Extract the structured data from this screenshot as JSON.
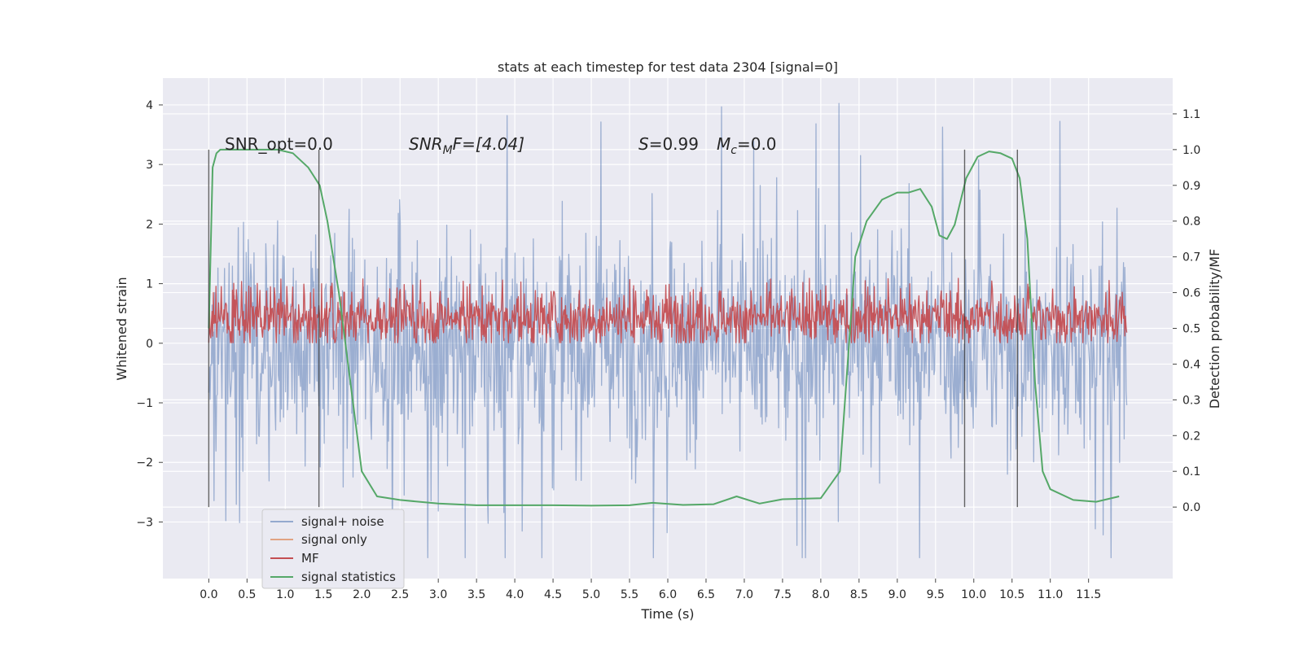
{
  "chart_data": {
    "type": "line",
    "title": "stats at each timestep for test data 2304 [signal=0]",
    "xlabel": "Time (s)",
    "ylabel": "Whitened strain",
    "ylabel_right": "Detection probability/MF",
    "xlim": [
      -0.6,
      12.6
    ],
    "ylim": [
      -3.95,
      4.45
    ],
    "ylim_right": [
      -0.2,
      1.2
    ],
    "x_ticks": [
      "0.0",
      "0.5",
      "1.0",
      "1.5",
      "2.0",
      "2.5",
      "3.0",
      "3.5",
      "4.0",
      "4.5",
      "5.0",
      "5.5",
      "6.0",
      "6.5",
      "7.0",
      "7.5",
      "8.0",
      "8.5",
      "9.0",
      "9.5",
      "10.0",
      "10.5",
      "11.0",
      "11.5"
    ],
    "y_ticks": [
      "4",
      "3",
      "2",
      "1",
      "0",
      "−1",
      "−2",
      "−3"
    ],
    "y_ticks_right": [
      "1.1",
      "1.0",
      "0.9",
      "0.8",
      "0.7",
      "0.6",
      "0.5",
      "0.4",
      "0.3",
      "0.2",
      "0.1",
      "0.0"
    ],
    "grid": true,
    "legend_position": "lower-left",
    "annotations": {
      "snr_opt": "SNR_opt=0.0",
      "snr_mf_base": "SNR",
      "snr_mf_sub": "M",
      "snr_mf_rest": "F=[4.04]",
      "s_label": "S",
      "s_value": "=0.99",
      "mc_label": "M",
      "mc_sub": "c",
      "mc_value": "=0.0"
    },
    "vertical_lines_x": [
      0.0,
      1.44,
      9.88,
      10.57
    ],
    "vertical_lines_range": [
      -2.75,
      3.25
    ],
    "series": [
      {
        "name": "signal+ noise",
        "color": "#4c72b0",
        "axis": "left",
        "x_range": [
          0.0,
          12.0
        ],
        "band": [
          -1.6,
          1.6
        ],
        "peaks_max": 4.1,
        "peaks_min": -3.6
      },
      {
        "name": "signal only",
        "color": "#dd8452",
        "axis": "left",
        "values": []
      },
      {
        "name": "MF",
        "color": "#c44e52",
        "axis": "right",
        "x_range": [
          0.0,
          12.0
        ],
        "band": [
          0.46,
          0.6
        ],
        "peaks_max": 0.64,
        "peaks_min": 0.46
      },
      {
        "name": "signal statistics",
        "color": "#55a868",
        "axis": "right",
        "x": [
          0.0,
          0.05,
          0.1,
          0.15,
          0.3,
          0.6,
          0.9,
          1.1,
          1.3,
          1.45,
          1.55,
          1.7,
          1.85,
          2.0,
          2.2,
          2.5,
          3.0,
          3.5,
          4.0,
          4.5,
          5.0,
          5.5,
          5.8,
          6.2,
          6.6,
          6.9,
          7.2,
          7.5,
          8.0,
          8.25,
          8.35,
          8.45,
          8.6,
          8.8,
          9.0,
          9.15,
          9.3,
          9.45,
          9.55,
          9.65,
          9.75,
          9.9,
          10.05,
          10.2,
          10.35,
          10.5,
          10.6,
          10.7,
          10.8,
          10.9,
          11.0,
          11.3,
          11.6,
          11.9
        ],
        "values": [
          0.5,
          0.95,
          0.99,
          1.0,
          1.0,
          1.0,
          1.0,
          0.99,
          0.95,
          0.9,
          0.8,
          0.6,
          0.35,
          0.1,
          0.03,
          0.02,
          0.01,
          0.005,
          0.005,
          0.005,
          0.004,
          0.005,
          0.012,
          0.006,
          0.008,
          0.03,
          0.01,
          0.022,
          0.025,
          0.1,
          0.4,
          0.7,
          0.8,
          0.86,
          0.88,
          0.88,
          0.89,
          0.84,
          0.76,
          0.75,
          0.79,
          0.92,
          0.98,
          0.995,
          0.99,
          0.975,
          0.92,
          0.75,
          0.35,
          0.1,
          0.05,
          0.02,
          0.015,
          0.03
        ]
      }
    ]
  }
}
